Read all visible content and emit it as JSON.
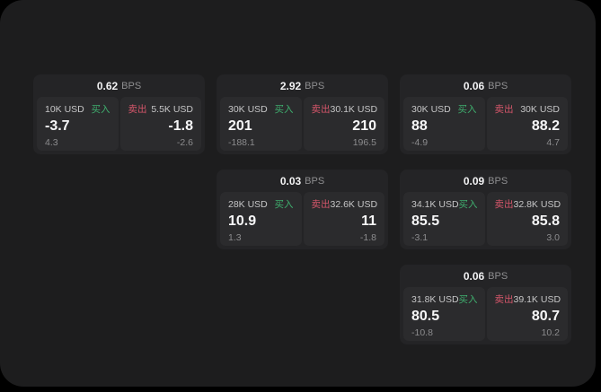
{
  "labels": {
    "buy": "买入",
    "sell": "卖出",
    "bps_unit": "BPS"
  },
  "colors": {
    "background": "#000000",
    "surface": "#1d1d1e",
    "card": "#242426",
    "tile": "#2b2b2d",
    "buy_green": "#3fae6e",
    "sell_red": "#d5566a",
    "primary_text": "#f7f7f8",
    "secondary_text": "#c6c6c7",
    "muted_text": "#8c8c8e"
  },
  "cards": [
    {
      "row": 1,
      "col": 1,
      "bps": "0.62",
      "buy": {
        "amount": "10K USD",
        "price": "-3.7",
        "delta": "4.3"
      },
      "sell": {
        "amount": "5.5K USD",
        "price": "-1.8",
        "delta": "-2.6"
      }
    },
    {
      "row": 1,
      "col": 2,
      "bps": "2.92",
      "buy": {
        "amount": "30K USD",
        "price": "201",
        "delta": "-188.1"
      },
      "sell": {
        "amount": "30.1K USD",
        "price": "210",
        "delta": "196.5"
      }
    },
    {
      "row": 1,
      "col": 3,
      "bps": "0.06",
      "buy": {
        "amount": "30K USD",
        "price": "88",
        "delta": "-4.9"
      },
      "sell": {
        "amount": "30K USD",
        "price": "88.2",
        "delta": "4.7"
      }
    },
    {
      "row": 2,
      "col": 2,
      "bps": "0.03",
      "buy": {
        "amount": "28K USD",
        "price": "10.9",
        "delta": "1.3"
      },
      "sell": {
        "amount": "32.6K USD",
        "price": "11",
        "delta": "-1.8"
      }
    },
    {
      "row": 2,
      "col": 3,
      "bps": "0.09",
      "buy": {
        "amount": "34.1K USD",
        "price": "85.5",
        "delta": "-3.1"
      },
      "sell": {
        "amount": "32.8K USD",
        "price": "85.8",
        "delta": "3.0"
      }
    },
    {
      "row": 3,
      "col": 3,
      "bps": "0.06",
      "buy": {
        "amount": "31.8K USD",
        "price": "80.5",
        "delta": "-10.8"
      },
      "sell": {
        "amount": "39.1K USD",
        "price": "80.7",
        "delta": "10.2"
      }
    }
  ]
}
